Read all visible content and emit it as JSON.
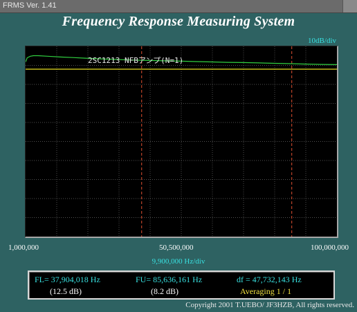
{
  "window": {
    "title": "FRMS   Ver. 1.41"
  },
  "app_title": "Frequency Response Measuring System",
  "y_scale_label": "10dB/div",
  "x_scale_label": "9,900,000  Hz/div",
  "trace_label": "2SC1213  NFBアンプ(N=1)",
  "colors": {
    "background": "#2e6262",
    "plot_background": "#000000",
    "grid": "#6e6e6e",
    "trace": "#30d040",
    "reference_line": "#e8e020",
    "marker": "#e05030",
    "accent": "#38e0e0"
  },
  "chart_data": {
    "type": "line",
    "title": "",
    "xlabel": "9,900,000  Hz/div",
    "ylabel": "10dB/div",
    "x_tick_labels": [
      "1,000,000",
      "50,500,000",
      "100,000,000"
    ],
    "xlim": [
      1000000,
      100000000
    ],
    "y_divisions": 10,
    "grid": true,
    "series": [
      {
        "name": "2SC1213  NFBアンプ(N=1)",
        "x": [
          1000000,
          1500000,
          2500000,
          3500000,
          5000000,
          8000000,
          12000000,
          16000000,
          20000000,
          25000000,
          30000000,
          35000000,
          40000000,
          45000000,
          50500000,
          55000000,
          60000000,
          65000000,
          70000000,
          75000000,
          80000000,
          85000000,
          90000000,
          95000000,
          100000000
        ],
        "y": [
          -1.2,
          1.0,
          1.8,
          2.1,
          2.1,
          1.8,
          1.4,
          1.1,
          0.8,
          0.4,
          0.1,
          -0.2,
          -0.4,
          -0.6,
          -0.8,
          -1.0,
          -1.2,
          -1.4,
          -1.5,
          -1.7,
          -1.9,
          -2.1,
          -2.3,
          -2.5,
          -2.6
        ]
      }
    ],
    "reference_level": -5,
    "markers": [
      {
        "name": "FL",
        "x": 37904018
      },
      {
        "name": "FU",
        "x": 85636161
      }
    ]
  },
  "readout": {
    "fl_label": "FL= 37,904,018  Hz",
    "fl_db": "(12.5 dB)",
    "fu_label": "FU= 85,636,161  Hz",
    "fu_db": "(8.2 dB)",
    "df_label": "df = 47,732,143  Hz",
    "averaging": "Averaging  1 / 1"
  },
  "copyright": "Copyright 2001 T.UEBO/ JF3HZB, All rights reserved."
}
